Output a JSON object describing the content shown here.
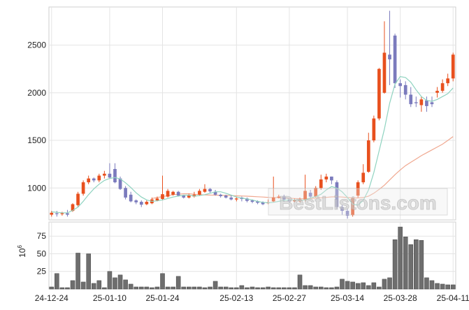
{
  "chart_data": [
    {
      "type": "candlestick",
      "x": [
        "24-12-24",
        "24-12-26",
        "24-12-27",
        "24-12-30",
        "24-12-31",
        "25-01-02",
        "25-01-03",
        "25-01-06",
        "25-01-07",
        "25-01-08",
        "25-01-09",
        "25-01-10",
        "25-01-13",
        "25-01-14",
        "25-01-15",
        "25-01-16",
        "25-01-17",
        "25-01-20",
        "25-01-21",
        "25-01-22",
        "25-01-23",
        "25-01-24",
        "25-01-27",
        "25-01-28",
        "25-01-29",
        "25-01-30",
        "25-01-31",
        "25-02-03",
        "25-02-04",
        "25-02-05",
        "25-02-06",
        "25-02-07",
        "25-02-10",
        "25-02-11",
        "25-02-12",
        "25-02-13",
        "25-02-14",
        "25-02-17",
        "25-02-18",
        "25-02-19",
        "25-02-20",
        "25-02-21",
        "25-02-24",
        "25-02-25",
        "25-02-26",
        "25-02-27",
        "25-02-28",
        "25-03-03",
        "25-03-04",
        "25-03-05",
        "25-03-06",
        "25-03-07",
        "25-03-10",
        "25-03-11",
        "25-03-12",
        "25-03-13",
        "25-03-14",
        "25-03-17",
        "25-03-18",
        "25-03-19",
        "25-03-20",
        "25-03-21",
        "25-03-24",
        "25-03-25",
        "25-03-26",
        "25-03-27",
        "25-03-28",
        "25-03-31",
        "25-04-01",
        "25-04-02",
        "25-04-03",
        "25-04-04",
        "25-04-07",
        "25-04-08",
        "25-04-09",
        "25-04-10",
        "25-04-11"
      ],
      "open": [
        720,
        735,
        730,
        735,
        760,
        820,
        940,
        1060,
        1100,
        1080,
        1130,
        1150,
        1200,
        1100,
        1000,
        930,
        870,
        855,
        830,
        840,
        870,
        885,
        910,
        930,
        960,
        920,
        900,
        910,
        930,
        960,
        990,
        960,
        930,
        920,
        900,
        880,
        900,
        890,
        870,
        860,
        850,
        840,
        860,
        900,
        910,
        880,
        860,
        860,
        880,
        950,
        910,
        1000,
        1090,
        1120,
        1060,
        800,
        760,
        715,
        920,
        1060,
        1170,
        1500,
        1730,
        2000,
        2400,
        2600,
        2100,
        2080,
        1980,
        1900,
        1870,
        1920,
        1900,
        2000,
        2020,
        2100,
        2150
      ],
      "close": [
        740,
        730,
        735,
        720,
        830,
        940,
        1060,
        1100,
        1080,
        1130,
        1150,
        1110,
        1060,
        990,
        900,
        860,
        850,
        825,
        855,
        880,
        890,
        935,
        970,
        960,
        920,
        900,
        920,
        930,
        970,
        990,
        965,
        930,
        915,
        900,
        880,
        890,
        885,
        865,
        855,
        845,
        830,
        850,
        900,
        910,
        880,
        860,
        870,
        880,
        970,
        910,
        1000,
        1090,
        1120,
        1080,
        800,
        760,
        710,
        890,
        1060,
        1160,
        1500,
        1730,
        2250,
        2420,
        2350,
        2100,
        2070,
        1980,
        1880,
        1890,
        1930,
        1860,
        1880,
        2020,
        2100,
        2150,
        2400
      ],
      "high": [
        760,
        760,
        750,
        770,
        840,
        960,
        1080,
        1130,
        1110,
        1150,
        1180,
        1260,
        1260,
        1120,
        1020,
        960,
        880,
        870,
        870,
        900,
        910,
        1130,
        990,
        970,
        970,
        930,
        940,
        960,
        990,
        1040,
        1000,
        980,
        940,
        930,
        920,
        910,
        910,
        900,
        880,
        870,
        860,
        880,
        1120,
        930,
        930,
        890,
        890,
        900,
        1140,
        980,
        1020,
        1140,
        1150,
        1120,
        1080,
        820,
        780,
        900,
        1080,
        1250,
        1580,
        1760,
        2260,
        2750,
        2860,
        2620,
        2140,
        2120,
        2060,
        1960,
        1960,
        1960,
        1960,
        2060,
        2140,
        2200,
        2420
      ],
      "low": [
        700,
        700,
        710,
        700,
        750,
        800,
        920,
        1040,
        1060,
        1060,
        1100,
        1100,
        1050,
        980,
        880,
        850,
        830,
        800,
        820,
        830,
        860,
        870,
        900,
        920,
        910,
        890,
        890,
        900,
        920,
        950,
        950,
        920,
        900,
        890,
        870,
        860,
        860,
        850,
        840,
        830,
        820,
        830,
        850,
        890,
        860,
        850,
        850,
        850,
        860,
        890,
        900,
        980,
        1060,
        1040,
        780,
        720,
        680,
        700,
        900,
        1040,
        1160,
        1480,
        1710,
        1990,
        2080,
        2050,
        1950,
        1930,
        1850,
        1850,
        1800,
        1800,
        1850,
        1950,
        2000,
        2070,
        2120
      ],
      "ma_short": [
        750,
        745,
        740,
        740,
        765,
        800,
        860,
        930,
        990,
        1040,
        1080,
        1100,
        1110,
        1095,
        1055,
        1005,
        950,
        905,
        875,
        860,
        865,
        875,
        890,
        905,
        915,
        925,
        925,
        915,
        920,
        930,
        945,
        960,
        960,
        945,
        925,
        905,
        895,
        885,
        875,
        860,
        850,
        845,
        850,
        860,
        870,
        875,
        875,
        870,
        875,
        895,
        910,
        935,
        980,
        1015,
        1000,
        960,
        900,
        830,
        820,
        870,
        980,
        1160,
        1390,
        1620,
        1890,
        2090,
        2170,
        2160,
        2110,
        2030,
        1960,
        1920,
        1910,
        1930,
        1960,
        1990,
        2050
      ],
      "ma_mid": [
        null,
        null,
        null,
        null,
        null,
        null,
        null,
        null,
        null,
        null,
        null,
        null,
        null,
        null,
        null,
        null,
        null,
        null,
        null,
        890,
        900,
        910,
        920,
        930,
        935,
        940,
        940,
        935,
        930,
        928,
        926,
        925,
        924,
        922,
        920,
        918,
        916,
        914,
        911,
        908,
        905,
        902,
        900,
        898,
        896,
        893,
        890,
        888,
        888,
        890,
        893,
        897,
        902,
        907,
        908,
        905,
        900,
        896,
        896,
        900,
        915,
        945,
        985,
        1030,
        1085,
        1140,
        1190,
        1235,
        1270,
        1305,
        1340,
        1370,
        1400,
        1430,
        1460,
        1500,
        1540
      ],
      "ma_long": [
        null,
        null,
        null,
        null,
        null,
        null,
        null,
        null,
        null,
        null,
        null,
        null,
        null,
        null,
        null,
        null,
        null,
        null,
        null,
        null,
        null,
        null,
        null,
        null,
        null,
        null,
        null,
        null,
        null,
        null,
        null,
        null,
        null,
        null,
        null,
        null,
        null,
        null,
        null,
        null,
        null,
        null,
        null,
        null,
        null,
        null,
        null,
        null,
        null,
        null,
        null,
        null,
        null,
        null,
        null,
        null,
        null,
        null,
        null,
        null,
        null,
        null,
        null,
        null,
        null,
        null,
        null,
        null,
        null,
        null,
        null,
        null,
        null,
        null,
        null,
        null,
        null
      ],
      "ylim": [
        665,
        2900
      ],
      "yticks": [
        1000,
        1500,
        2000,
        2500
      ],
      "xticks": [
        "24-12-24",
        "25-01-10",
        "25-01-24",
        "25-02-13",
        "25-02-27",
        "25-03-14",
        "25-03-28",
        "25-04-11"
      ],
      "grid": true
    },
    {
      "type": "bar",
      "series": [
        {
          "values": [
            3,
            22,
            2,
            2,
            12,
            51,
            10,
            50,
            8,
            12,
            2,
            25,
            16,
            20,
            13,
            7,
            3,
            3,
            3,
            2,
            3,
            22,
            3,
            3,
            18,
            3,
            3,
            3,
            3,
            2,
            3,
            11,
            3,
            3,
            2,
            2,
            5,
            2,
            3,
            2,
            2,
            3,
            2,
            2,
            2,
            2,
            2,
            20,
            5,
            5,
            3,
            3,
            2,
            2,
            3,
            14,
            11,
            10,
            8,
            9,
            5,
            9,
            3,
            14,
            16,
            70,
            88,
            74,
            63,
            70,
            69,
            16,
            12,
            8,
            7,
            6,
            6
          ]
        }
      ],
      "ylim": [
        0,
        95
      ],
      "yticks": [
        25,
        50,
        75
      ],
      "ylabel": "10^6",
      "grid": true
    }
  ],
  "watermark": "BestListons.com",
  "colors": {
    "up": "#e8501e",
    "down": "#7b7bbd",
    "ma_short": "#8fd3c0",
    "ma_mid": "#f0a890",
    "ma_long": "#f0b898",
    "volume": "#6e6e6e",
    "grid": "#e4e4e4",
    "axis": "#cfcfcf"
  }
}
